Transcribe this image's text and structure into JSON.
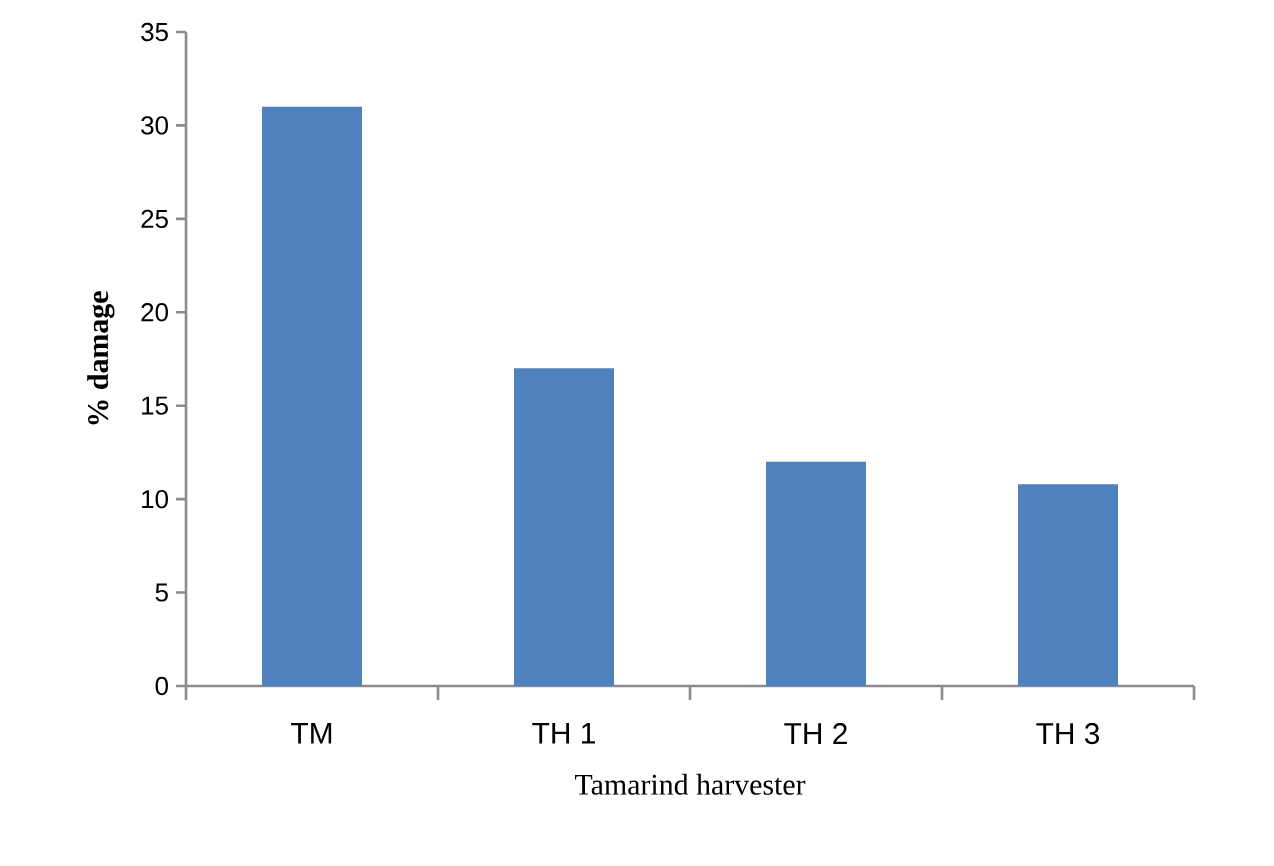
{
  "chart_data": {
    "type": "bar",
    "xlabel": "Tamarind harvester",
    "ylabel": "% damage",
    "categories": [
      "TM",
      "TH 1",
      "TH 2",
      "TH 3"
    ],
    "values": [
      31.0,
      17.0,
      12.0,
      10.8
    ],
    "color": "#4f81bd",
    "ylim": [
      0,
      35
    ],
    "yticks": [
      0,
      5,
      10,
      15,
      20,
      25,
      30,
      35
    ]
  }
}
